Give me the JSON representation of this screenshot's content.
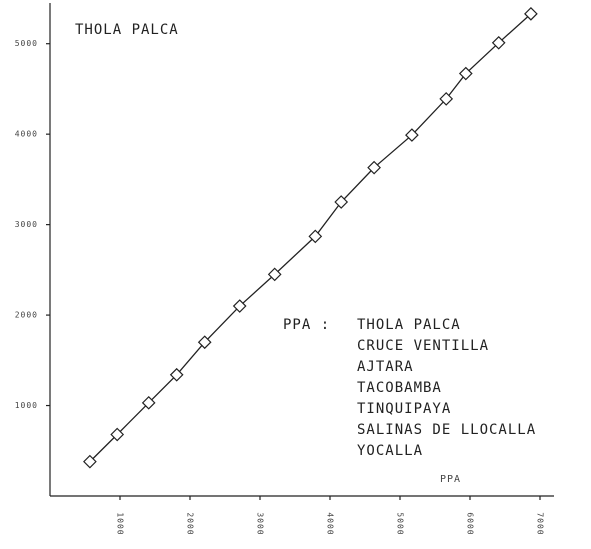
{
  "chart_data": {
    "type": "line",
    "title": "THOLA PALCA",
    "x_label": "PPA",
    "legend_label": "PPA :",
    "stations": [
      "THOLA PALCA",
      "CRUCE VENTILLA",
      "AJTARA",
      "TACOBAMBA",
      "TINQUIPAYA",
      "SALINAS DE LLOCALLA",
      "YOCALLA"
    ],
    "series": [
      {
        "color": "#222222",
        "x": [
          570,
          960,
          1410,
          1810,
          2210,
          2710,
          3210,
          3790,
          4160,
          4630,
          5170,
          5660,
          5940,
          6410,
          6870
        ],
        "values": [
          380,
          680,
          1030,
          1340,
          1700,
          2100,
          2450,
          2870,
          3250,
          3630,
          3990,
          4390,
          4670,
          5010,
          5330
        ]
      }
    ],
    "xlim": [
      0,
      7200
    ],
    "xticks": [
      1000,
      2000,
      3000,
      4000,
      5000,
      6000,
      7000
    ],
    "ylim": [
      0,
      5450
    ],
    "yticks": [
      1000,
      2000,
      3000,
      4000,
      5000
    ]
  }
}
